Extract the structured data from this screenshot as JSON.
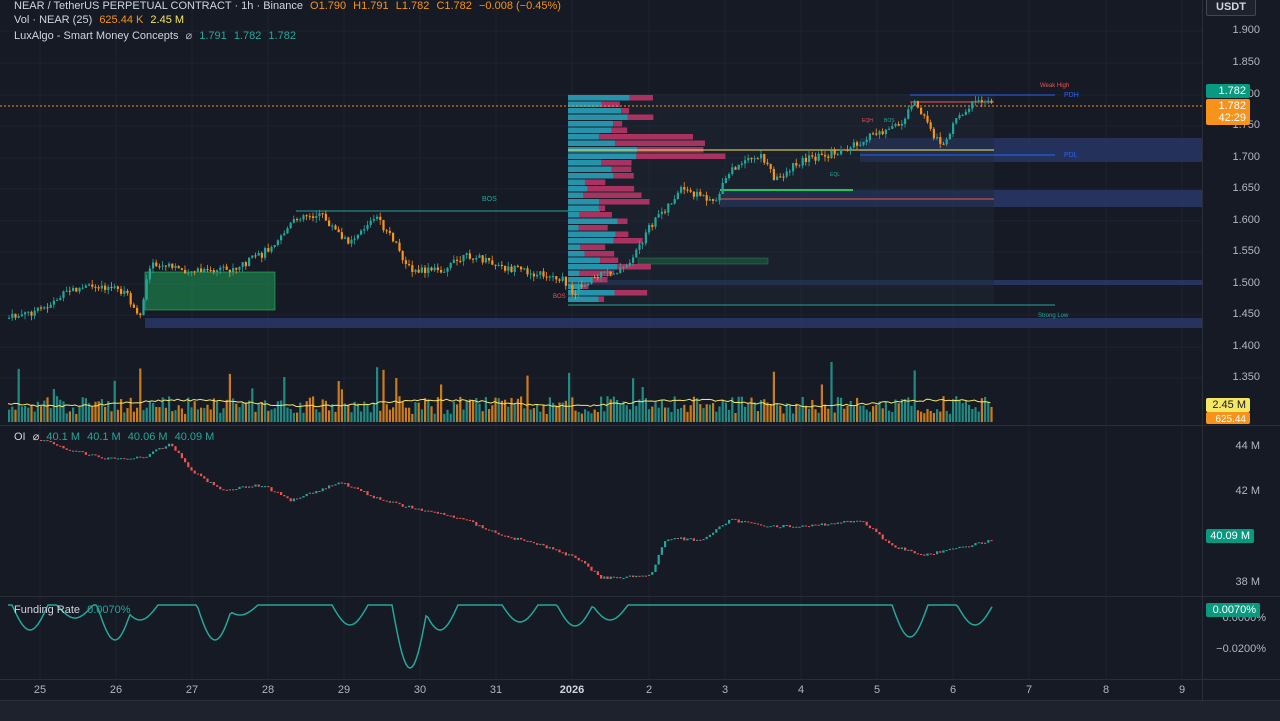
{
  "header": {
    "symbol": "NEAR / TetherUS PERPETUAL CONTRACT · 1h · Binance",
    "open": "O1.790",
    "high": "H1.791",
    "low": "L1.782",
    "close": "C1.782",
    "change": "−0.008 (−0.45%)"
  },
  "vol_legend": {
    "name": "Vol · NEAR (25)",
    "v1": "625.44 K",
    "v2": "2.45 M"
  },
  "smc_legend": {
    "name": "LuxAlgo - Smart Money Concepts",
    "icon": "eye-slash-icon",
    "v1": "1.791",
    "v2": "1.782",
    "v3": "1.782"
  },
  "oi_legend": {
    "name": "OI",
    "v1": "40.1 M",
    "v2": "40.1 M",
    "v3": "40.06 M",
    "v4": "40.09 M"
  },
  "funding_legend": {
    "name": "Funding Rate",
    "value": "0.0070%"
  },
  "unit": "USDT",
  "price_axis": [
    "1.900",
    "1.850",
    "1.800",
    "1.750",
    "1.700",
    "1.650",
    "1.600",
    "1.550",
    "1.500",
    "1.450",
    "1.400",
    "1.350"
  ],
  "oi_axis": [
    "44 M",
    "42 M",
    "38 M"
  ],
  "funding_axis": [
    "0.0000%",
    "−0.0200%"
  ],
  "badges": {
    "last_price": "1.782",
    "current_price": "1.782",
    "countdown": "42:29",
    "vol_ma": "2.45 M",
    "vol_value": "625.44 K",
    "oi": "40.09 M",
    "funding": "0.0070%"
  },
  "annotations": {
    "bos_left": "BOS",
    "bos_bottom": "BOS",
    "weak_high": "Weak High",
    "pdh": "PDH",
    "pdl": "PDL",
    "eqh": "EQH",
    "bos_top": "BOS",
    "eql": "EQL",
    "strong_low": "Strong Low"
  },
  "x_axis": [
    "25",
    "26",
    "27",
    "28",
    "29",
    "30",
    "31",
    "2026",
    "2",
    "3",
    "4",
    "5",
    "6",
    "7",
    "8",
    "9"
  ],
  "colors": {
    "bg": "#161a25",
    "up": "#26a69a",
    "down": "#f7931a",
    "oi_up": "#26a69a",
    "oi_down": "#ef5350",
    "ma": "#f5e663",
    "orange_badge": "#f7931a",
    "teal_badge": "#089981"
  }
}
